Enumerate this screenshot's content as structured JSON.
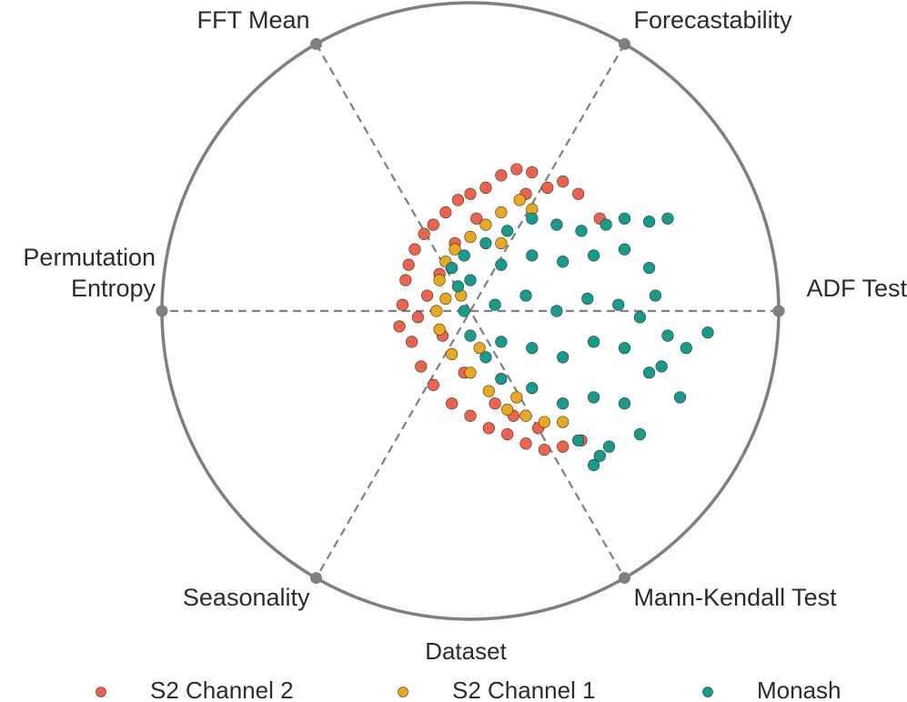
{
  "chart_data": {
    "type": "radviz",
    "anchors": [
      "ADF Test",
      "Forecastability",
      "FFT Mean",
      "Permutation Entropy",
      "Seasonality",
      "Mann-Kendall Test"
    ],
    "legend_title": "Dataset",
    "series": [
      {
        "name": "S2 Channel 2",
        "color": "#f0634a",
        "x": [
          -0.22,
          -0.23,
          -0.21,
          -0.2,
          -0.18,
          -0.15,
          -0.12,
          -0.08,
          -0.04,
          0.0,
          0.05,
          0.1,
          0.15,
          0.2,
          0.25,
          0.35,
          0.42,
          -0.19,
          -0.16,
          -0.12,
          -0.06,
          0.0,
          0.06,
          0.12,
          0.18,
          0.24,
          0.3,
          0.36,
          -0.14,
          -0.1,
          -0.09,
          -0.05,
          0.02,
          0.08,
          -0.02,
          0.3,
          0.18,
          -0.17,
          0.14,
          0.22
        ],
        "y": [
          0.02,
          -0.05,
          0.1,
          0.15,
          0.2,
          0.25,
          0.28,
          0.32,
          0.36,
          0.38,
          0.4,
          0.44,
          0.46,
          0.45,
          0.4,
          0.38,
          0.3,
          -0.1,
          -0.18,
          -0.24,
          -0.3,
          -0.34,
          -0.38,
          -0.4,
          -0.43,
          -0.45,
          -0.44,
          -0.42,
          0.05,
          0.12,
          -0.08,
          0.22,
          0.3,
          -0.3,
          -0.2,
          0.42,
          0.38,
          -0.02,
          -0.34,
          -0.38
        ]
      },
      {
        "name": "S2 Channel 1",
        "color": "#eaa81a",
        "x": [
          -0.1,
          -0.08,
          -0.05,
          0.0,
          0.05,
          0.1,
          0.16,
          0.2,
          -0.11,
          -0.1,
          -0.06,
          0.0,
          0.06,
          0.12,
          0.18,
          0.24,
          0.3,
          -0.03,
          0.03,
          0.1,
          0.15,
          -0.08
        ],
        "y": [
          0.1,
          0.16,
          0.2,
          0.24,
          0.28,
          0.32,
          0.36,
          0.33,
          0.0,
          -0.06,
          -0.14,
          -0.2,
          -0.26,
          -0.32,
          -0.34,
          -0.36,
          -0.36,
          0.05,
          -0.12,
          0.22,
          -0.28,
          0.04
        ]
      },
      {
        "name": "Monash",
        "color": "#169c8c",
        "x": [
          -0.06,
          -0.02,
          0.05,
          0.12,
          0.2,
          0.28,
          0.36,
          0.44,
          0.5,
          0.58,
          0.64,
          0.0,
          0.1,
          0.2,
          0.3,
          0.4,
          0.5,
          0.58,
          0.6,
          -0.02,
          0.08,
          0.18,
          0.28,
          0.38,
          0.48,
          0.55,
          0.64,
          0.77,
          0.0,
          0.1,
          0.2,
          0.3,
          0.4,
          0.5,
          0.58,
          0.68,
          0.1,
          0.2,
          0.3,
          0.4,
          0.5,
          0.35,
          0.45,
          0.55,
          0.4,
          0.42,
          0.62,
          0.7,
          -0.04,
          0.05
        ],
        "y": [
          0.14,
          0.18,
          0.22,
          0.26,
          0.3,
          0.28,
          0.26,
          0.28,
          0.3,
          0.29,
          0.3,
          0.1,
          0.15,
          0.18,
          0.16,
          0.18,
          0.2,
          0.14,
          0.05,
          0.0,
          0.02,
          0.05,
          0.0,
          0.04,
          0.02,
          -0.02,
          -0.08,
          -0.07,
          -0.08,
          -0.1,
          -0.12,
          -0.15,
          -0.1,
          -0.12,
          -0.2,
          -0.28,
          -0.22,
          -0.25,
          -0.3,
          -0.28,
          -0.3,
          -0.42,
          -0.44,
          -0.4,
          -0.5,
          -0.47,
          -0.18,
          -0.12,
          0.08,
          -0.15
        ]
      }
    ]
  }
}
